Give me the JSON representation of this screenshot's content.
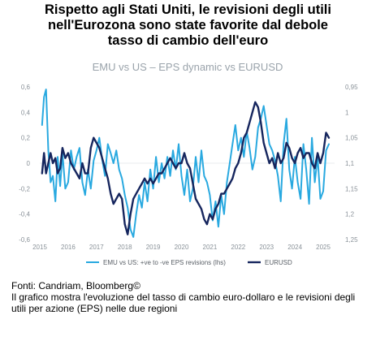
{
  "headline": {
    "line1": "Rispetto agli Stati Uniti, le revisioni degli utili",
    "line2": "nell'Eurozona sono state favorite dal debole",
    "line3": "tasso di cambio dell'euro"
  },
  "footer": {
    "source": "Fonti: Candriam, Bloomberg©",
    "caption": "Il grafico mostra l'evoluzione del tasso di cambio euro-dollaro e le revisioni degli utili per azione (EPS) nelle due regioni"
  },
  "colors": {
    "eps": "#29a9e0",
    "eurusd": "#16265e",
    "axis": "#8a9299"
  },
  "chart_data": {
    "type": "line",
    "title": "EMU vs US – EPS dynamic vs EURUSD",
    "x_tick_labels": [
      "2015",
      "2016",
      "2017",
      "2018",
      "2019",
      "2020",
      "2021",
      "2022",
      "2023",
      "2024",
      "2025"
    ],
    "x_range": [
      2015.0,
      2025.4
    ],
    "y_left": {
      "range": [
        -0.6,
        0.6
      ],
      "tick_labels": [
        "0,6",
        "0,4",
        "0,2",
        "0",
        "-0,2",
        "-0,4",
        "-0,6"
      ],
      "tick_values": [
        0.6,
        0.4,
        0.2,
        0,
        -0.2,
        -0.4,
        -0.6
      ]
    },
    "y_right": {
      "range": [
        0.95,
        1.25
      ],
      "inverted": true,
      "tick_labels": [
        "0,95",
        "1",
        "1,05",
        "1,1",
        "1,15",
        "1,2",
        "1,25"
      ],
      "tick_values": [
        0.95,
        1.0,
        1.05,
        1.1,
        1.15,
        1.2,
        1.25
      ]
    },
    "legend_position": "bottom",
    "series": [
      {
        "name": "EMU vs US: +ve to -ve EPS revisions (lhs)",
        "axis": "left",
        "x": [
          2015.08,
          2015.15,
          2015.22,
          2015.3,
          2015.38,
          2015.46,
          2015.55,
          2015.63,
          2015.72,
          2015.8,
          2015.9,
          2016.0,
          2016.1,
          2016.2,
          2016.3,
          2016.4,
          2016.5,
          2016.6,
          2016.7,
          2016.8,
          2016.9,
          2017.0,
          2017.1,
          2017.2,
          2017.3,
          2017.4,
          2017.5,
          2017.6,
          2017.7,
          2017.8,
          2017.9,
          2018.0,
          2018.1,
          2018.2,
          2018.3,
          2018.4,
          2018.5,
          2018.6,
          2018.7,
          2018.8,
          2018.9,
          2019.0,
          2019.1,
          2019.2,
          2019.3,
          2019.4,
          2019.5,
          2019.6,
          2019.7,
          2019.8,
          2019.9,
          2020.0,
          2020.1,
          2020.2,
          2020.3,
          2020.4,
          2020.5,
          2020.6,
          2020.7,
          2020.8,
          2020.9,
          2021.0,
          2021.1,
          2021.2,
          2021.3,
          2021.4,
          2021.5,
          2021.6,
          2021.7,
          2021.8,
          2021.9,
          2022.0,
          2022.1,
          2022.2,
          2022.3,
          2022.4,
          2022.5,
          2022.6,
          2022.7,
          2022.8,
          2022.9,
          2023.0,
          2023.1,
          2023.2,
          2023.3,
          2023.4,
          2023.5,
          2023.6,
          2023.7,
          2023.8,
          2023.9,
          2024.0,
          2024.1,
          2024.2,
          2024.3,
          2024.4,
          2024.5,
          2024.6,
          2024.7,
          2024.8,
          2024.9,
          2025.0,
          2025.1,
          2025.2
        ],
        "values": [
          0.3,
          0.52,
          0.58,
          0.1,
          -0.15,
          -0.1,
          -0.3,
          0.05,
          -0.18,
          0.08,
          -0.2,
          -0.15,
          0.1,
          -0.05,
          0.05,
          0.12,
          -0.15,
          -0.25,
          -0.05,
          -0.2,
          0.02,
          0.1,
          0.2,
          0.03,
          -0.1,
          0.15,
          0.08,
          0.0,
          0.1,
          -0.05,
          -0.12,
          -0.25,
          -0.35,
          -0.52,
          -0.58,
          -0.4,
          -0.25,
          -0.35,
          -0.15,
          -0.3,
          -0.05,
          -0.2,
          0.05,
          -0.15,
          0.0,
          -0.12,
          0.05,
          -0.1,
          0.1,
          -0.05,
          0.15,
          -0.1,
          -0.25,
          -0.05,
          -0.3,
          -0.2,
          0.05,
          -0.15,
          0.1,
          -0.1,
          -0.15,
          -0.25,
          -0.45,
          -0.3,
          -0.5,
          -0.25,
          -0.4,
          -0.15,
          0.0,
          0.15,
          0.3,
          0.1,
          0.2,
          0.05,
          0.25,
          0.12,
          -0.05,
          0.05,
          0.28,
          0.35,
          0.45,
          0.3,
          0.15,
          0.1,
          0.02,
          -0.1,
          -0.3,
          0.15,
          0.35,
          -0.05,
          -0.2,
          0.05,
          -0.15,
          -0.28,
          0.15,
          -0.05,
          -0.32,
          0.2,
          -0.15,
          0.05,
          -0.28,
          -0.22,
          0.1,
          0.15
        ]
      },
      {
        "name": "EURUSD",
        "axis": "right",
        "x": [
          2015.08,
          2015.15,
          2015.22,
          2015.3,
          2015.38,
          2015.46,
          2015.55,
          2015.63,
          2015.72,
          2015.8,
          2015.9,
          2016.0,
          2016.1,
          2016.2,
          2016.3,
          2016.4,
          2016.5,
          2016.6,
          2016.7,
          2016.8,
          2016.9,
          2017.0,
          2017.1,
          2017.2,
          2017.3,
          2017.4,
          2017.5,
          2017.6,
          2017.7,
          2017.8,
          2017.9,
          2018.0,
          2018.1,
          2018.2,
          2018.3,
          2018.4,
          2018.5,
          2018.6,
          2018.7,
          2018.8,
          2018.9,
          2019.0,
          2019.1,
          2019.2,
          2019.3,
          2019.4,
          2019.5,
          2019.6,
          2019.7,
          2019.8,
          2019.9,
          2020.0,
          2020.1,
          2020.2,
          2020.3,
          2020.4,
          2020.5,
          2020.6,
          2020.7,
          2020.8,
          2020.9,
          2021.0,
          2021.1,
          2021.2,
          2021.3,
          2021.4,
          2021.5,
          2021.6,
          2021.7,
          2021.8,
          2021.9,
          2022.0,
          2022.1,
          2022.2,
          2022.3,
          2022.4,
          2022.5,
          2022.6,
          2022.7,
          2022.8,
          2022.9,
          2023.0,
          2023.1,
          2023.2,
          2023.3,
          2023.4,
          2023.5,
          2023.6,
          2023.7,
          2023.8,
          2023.9,
          2024.0,
          2024.1,
          2024.2,
          2024.3,
          2024.4,
          2024.5,
          2024.6,
          2024.7,
          2024.8,
          2024.9,
          2025.0,
          2025.1,
          2025.2
        ],
        "values": [
          1.12,
          1.08,
          1.12,
          1.1,
          1.08,
          1.1,
          1.09,
          1.12,
          1.11,
          1.07,
          1.09,
          1.08,
          1.1,
          1.11,
          1.12,
          1.13,
          1.1,
          1.12,
          1.12,
          1.07,
          1.05,
          1.06,
          1.07,
          1.09,
          1.11,
          1.13,
          1.16,
          1.18,
          1.17,
          1.16,
          1.17,
          1.22,
          1.24,
          1.2,
          1.17,
          1.16,
          1.15,
          1.14,
          1.13,
          1.14,
          1.13,
          1.14,
          1.13,
          1.12,
          1.12,
          1.11,
          1.1,
          1.09,
          1.1,
          1.11,
          1.1,
          1.1,
          1.08,
          1.1,
          1.11,
          1.14,
          1.17,
          1.18,
          1.19,
          1.21,
          1.22,
          1.2,
          1.21,
          1.19,
          1.18,
          1.16,
          1.16,
          1.15,
          1.14,
          1.13,
          1.11,
          1.1,
          1.08,
          1.05,
          1.04,
          1.02,
          1.0,
          0.98,
          0.99,
          1.02,
          1.06,
          1.08,
          1.1,
          1.09,
          1.11,
          1.08,
          1.1,
          1.09,
          1.06,
          1.07,
          1.09,
          1.1,
          1.08,
          1.07,
          1.09,
          1.08,
          1.08,
          1.1,
          1.11,
          1.08,
          1.1,
          1.08,
          1.04,
          1.05
        ]
      }
    ]
  }
}
